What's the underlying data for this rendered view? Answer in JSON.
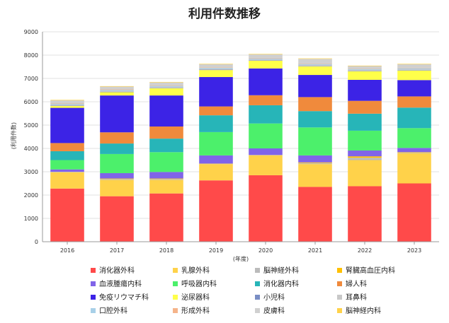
{
  "chart_data": {
    "type": "bar",
    "stacked": true,
    "title": "利用件数推移",
    "xlabel": "(年度)",
    "ylabel": "(利用件数)",
    "ylim": [
      0,
      9000
    ],
    "yticks": [
      0,
      1000,
      2000,
      3000,
      4000,
      5000,
      6000,
      7000,
      8000,
      9000
    ],
    "grid": true,
    "legend_position": "bottom",
    "categories": [
      "2016",
      "2017",
      "2018",
      "2019",
      "2020",
      "2021",
      "2022",
      "2023"
    ],
    "series": [
      {
        "name": "消化器外科",
        "color": "#ff4a4a",
        "values": [
          2280,
          1950,
          2070,
          2630,
          2850,
          2350,
          2380,
          2500
        ]
      },
      {
        "name": "乳腺外科",
        "color": "#ffd24a",
        "values": [
          700,
          700,
          580,
          700,
          850,
          980,
          1120,
          1300
        ]
      },
      {
        "name": "脳神経外科",
        "color": "#bbbbbb",
        "values": [
          20,
          40,
          40,
          10,
          10,
          40,
          100,
          20
        ]
      },
      {
        "name": "腎臓高血圧内科",
        "color": "#ffc000",
        "values": [
          0,
          20,
          20,
          10,
          10,
          30,
          60,
          20
        ]
      },
      {
        "name": "血液腫瘍内科",
        "color": "#8064e8",
        "values": [
          100,
          230,
          280,
          350,
          280,
          300,
          250,
          180
        ]
      },
      {
        "name": "呼吸器内科",
        "color": "#4cf06b",
        "values": [
          400,
          820,
          850,
          1000,
          1070,
          1200,
          850,
          850
        ]
      },
      {
        "name": "消化器内科",
        "color": "#27b5b8",
        "values": [
          380,
          450,
          580,
          720,
          780,
          700,
          730,
          880
        ]
      },
      {
        "name": "婦人科",
        "color": "#f08a3c",
        "values": [
          350,
          480,
          520,
          380,
          430,
          600,
          550,
          480
        ]
      },
      {
        "name": "免疫リウマチ科",
        "color": "#3c23e6",
        "values": [
          1510,
          1580,
          1330,
          1260,
          1150,
          950,
          900,
          700
        ]
      },
      {
        "name": "泌尿器科",
        "color": "#ffff4a",
        "values": [
          80,
          140,
          310,
          300,
          330,
          370,
          370,
          410
        ]
      },
      {
        "name": "小児科",
        "color": "#7a8ec4",
        "values": [
          20,
          20,
          20,
          20,
          20,
          20,
          20,
          20
        ]
      },
      {
        "name": "耳鼻科",
        "color": "#c8c8c8",
        "values": [
          40,
          40,
          40,
          40,
          40,
          40,
          40,
          40
        ]
      },
      {
        "name": "口腔外科",
        "color": "#a8d0e8",
        "values": [
          40,
          40,
          40,
          40,
          40,
          40,
          40,
          40
        ]
      },
      {
        "name": "形成外科",
        "color": "#f5b48a",
        "values": [
          20,
          20,
          20,
          20,
          20,
          20,
          20,
          20
        ]
      },
      {
        "name": "皮膚科",
        "color": "#d0d0d0",
        "values": [
          120,
          120,
          130,
          130,
          150,
          200,
          100,
          150
        ]
      },
      {
        "name": "脳神経内科",
        "color": "#ffd24a",
        "values": [
          20,
          20,
          20,
          20,
          20,
          20,
          20,
          20
        ]
      }
    ]
  }
}
